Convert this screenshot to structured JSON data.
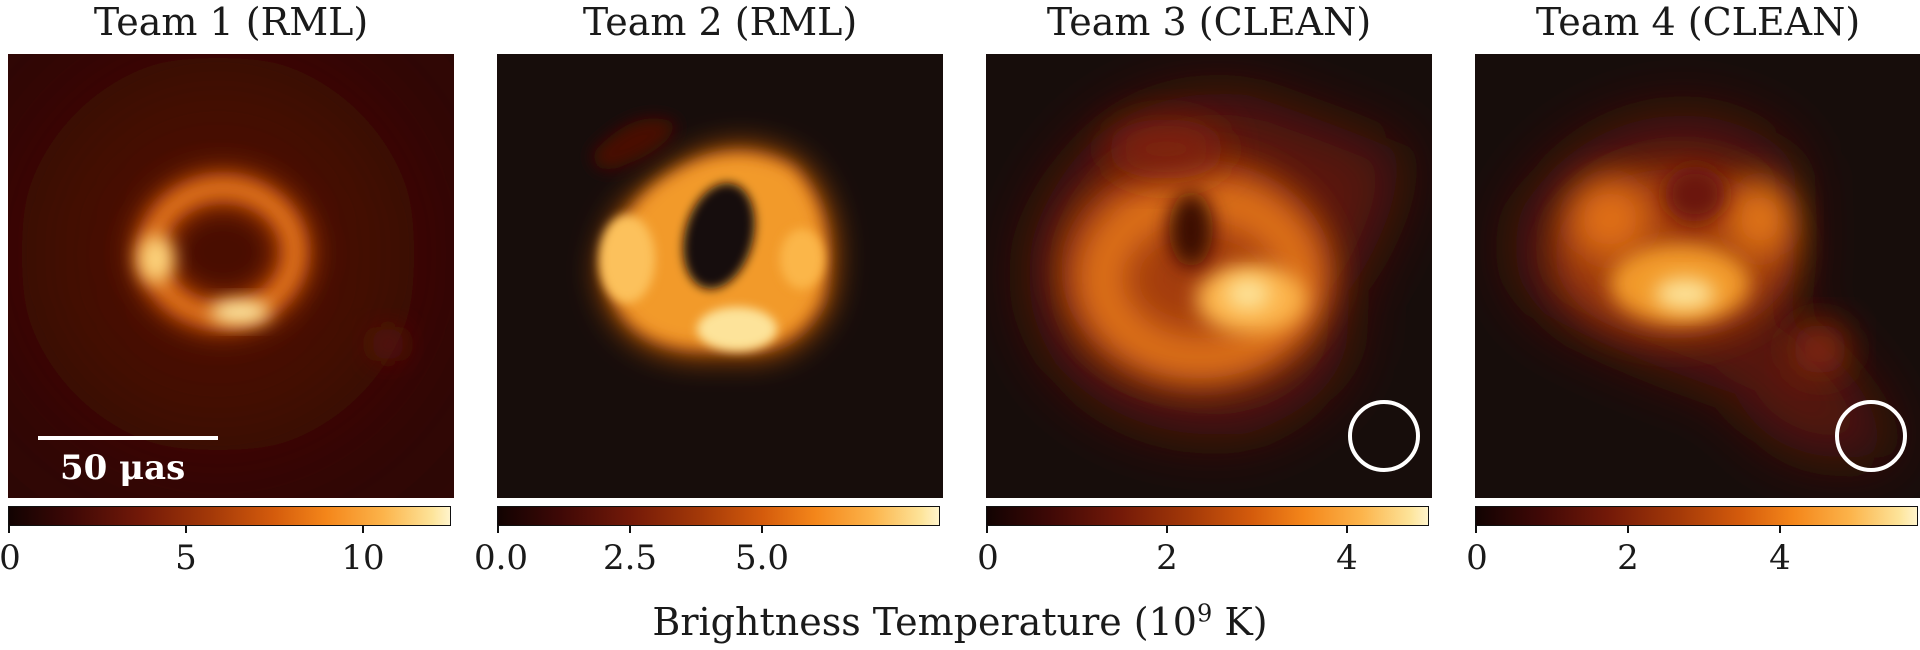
{
  "panels": [
    {
      "title": "Team 1 (RML)",
      "colorbar_ticks": [
        "0",
        "5",
        "10"
      ],
      "scale_bar_label": "50 μas"
    },
    {
      "title": "Team 2 (RML)",
      "colorbar_ticks": [
        "0.0",
        "2.5",
        "5.0"
      ]
    },
    {
      "title": "Team 3 (CLEAN)",
      "colorbar_ticks": [
        "0",
        "2",
        "4"
      ]
    },
    {
      "title": "Team 4 (CLEAN)",
      "colorbar_ticks": [
        "0",
        "2",
        "4"
      ]
    }
  ],
  "xlabel_text": "Brightness Temperature (10",
  "xlabel_exp": "9",
  "xlabel_unit": " K)",
  "colormap": [
    "#120302",
    "#731908",
    "#d45b0c",
    "#fcb44b",
    "#fff4cc"
  ]
}
